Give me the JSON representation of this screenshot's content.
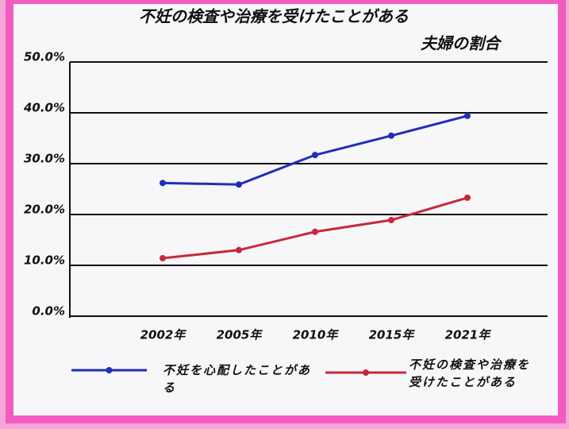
{
  "chart_data": {
    "type": "line",
    "title": "不妊の検査や治療を受けたことがある",
    "subtitle": "夫婦の割合",
    "categories": [
      "2002年",
      "2005年",
      "2010年",
      "2015年",
      "2021年"
    ],
    "series": [
      {
        "name": "不妊を心配したことがある",
        "color": "#1f2fb8",
        "values": [
          26.2,
          25.9,
          31.7,
          35.5,
          39.4
        ]
      },
      {
        "name": "不妊の検査や治療を受けたことがある",
        "color": "#c8283a",
        "values": [
          11.4,
          13.0,
          16.6,
          18.9,
          23.3
        ]
      }
    ],
    "ylim": [
      0,
      50
    ],
    "yticks": [
      {
        "value": 0,
        "label": "0.0%"
      },
      {
        "value": 10,
        "label": "10.0%"
      },
      {
        "value": 20,
        "label": "20.0%"
      },
      {
        "value": 30,
        "label": "30.0%"
      },
      {
        "value": 40,
        "label": "40.0%"
      },
      {
        "value": 50,
        "label": "50.0%"
      }
    ],
    "grid": true
  }
}
